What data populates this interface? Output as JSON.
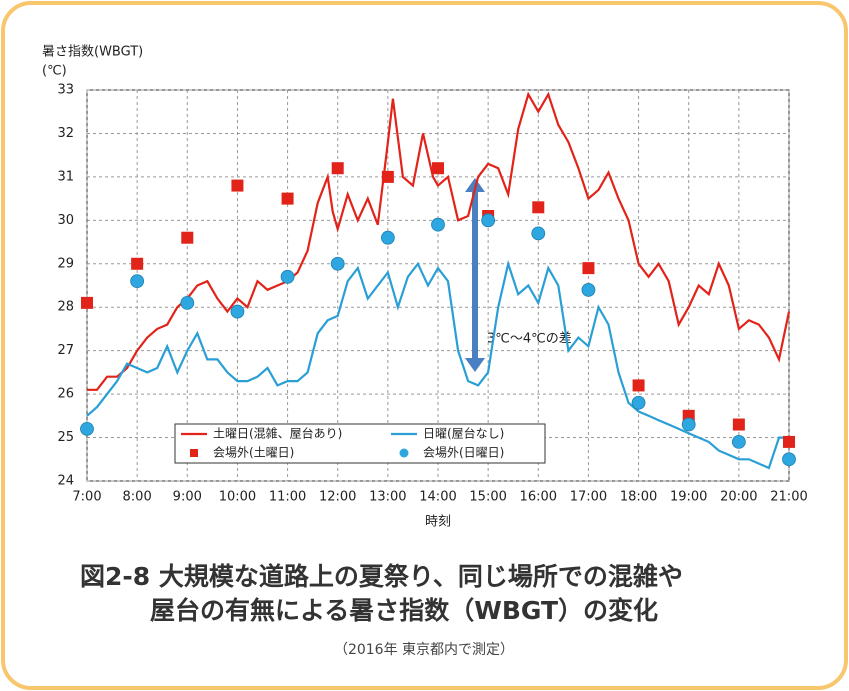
{
  "chart_data": {
    "type": "line",
    "title": [
      "図2-8 大規模な道路上の夏祭り、同じ場所での混雑や",
      "屋台の有無による暑さ指数（WBGT）の変化"
    ],
    "subtitle": "（2016年 東京都内で測定）",
    "y_label": [
      "暑さ指数(WBGT)",
      "(℃)"
    ],
    "x_label": "時刻",
    "annotation": "3℃～4℃の差",
    "xlim": [
      7,
      21
    ],
    "xticks": [
      {
        "value": 7,
        "label": "7:00"
      },
      {
        "value": 8,
        "label": "8:00"
      },
      {
        "value": 9,
        "label": "9:00"
      },
      {
        "value": 10,
        "label": "10:00"
      },
      {
        "value": 11,
        "label": "11:00"
      },
      {
        "value": 12,
        "label": "12:00"
      },
      {
        "value": 13,
        "label": "13:00"
      },
      {
        "value": 14,
        "label": "14:00"
      },
      {
        "value": 15,
        "label": "15:00"
      },
      {
        "value": 16,
        "label": "16:00"
      },
      {
        "value": 17,
        "label": "17:00"
      },
      {
        "value": 18,
        "label": "18:00"
      },
      {
        "value": 19,
        "label": "19:00"
      },
      {
        "value": 20,
        "label": "20:00"
      },
      {
        "value": 21,
        "label": "21:00"
      }
    ],
    "ylim": [
      24,
      33
    ],
    "yticks": [
      24,
      25,
      26,
      27,
      28,
      29,
      30,
      31,
      32,
      33
    ],
    "grid": true,
    "series": [
      {
        "name": "土曜日(混雑、屋台あり)",
        "color": "#e2231a",
        "style": "line",
        "x": [
          7.0,
          7.2,
          7.4,
          7.6,
          7.8,
          8.0,
          8.2,
          8.4,
          8.6,
          8.8,
          9.0,
          9.2,
          9.4,
          9.6,
          9.8,
          10.0,
          10.2,
          10.4,
          10.6,
          10.8,
          11.0,
          11.2,
          11.4,
          11.6,
          11.8,
          11.9,
          12.0,
          12.2,
          12.4,
          12.6,
          12.8,
          13.0,
          13.1,
          13.3,
          13.5,
          13.7,
          13.9,
          14.0,
          14.2,
          14.4,
          14.6,
          14.8,
          15.0,
          15.2,
          15.4,
          15.6,
          15.8,
          16.0,
          16.2,
          16.4,
          16.6,
          16.8,
          17.0,
          17.2,
          17.4,
          17.6,
          17.8,
          18.0,
          18.2,
          18.4,
          18.6,
          18.8,
          19.0,
          19.2,
          19.4,
          19.6,
          19.8,
          20.0,
          20.2,
          20.4,
          20.6,
          20.8,
          21.0
        ],
        "values": [
          26.1,
          26.1,
          26.4,
          26.4,
          26.6,
          27.0,
          27.3,
          27.5,
          27.6,
          28.0,
          28.2,
          28.5,
          28.6,
          28.2,
          27.9,
          28.2,
          28.0,
          28.6,
          28.4,
          28.5,
          28.6,
          28.8,
          29.3,
          30.4,
          31.0,
          30.2,
          29.8,
          30.6,
          30.0,
          30.5,
          29.9,
          31.8,
          32.8,
          31.0,
          30.8,
          32.0,
          31.0,
          30.8,
          31.0,
          30.0,
          30.1,
          31.0,
          31.3,
          31.2,
          30.6,
          32.1,
          32.9,
          32.5,
          32.9,
          32.2,
          31.8,
          31.2,
          30.5,
          30.7,
          31.1,
          30.5,
          30.0,
          29.0,
          28.7,
          29.0,
          28.6,
          27.6,
          28.0,
          28.5,
          28.3,
          29.0,
          28.5,
          27.5,
          27.7,
          27.6,
          27.3,
          26.8,
          27.9
        ]
      },
      {
        "name": "日曜(屋台なし)",
        "color": "#2a9fd6",
        "style": "line",
        "x": [
          7.0,
          7.2,
          7.4,
          7.6,
          7.8,
          8.0,
          8.2,
          8.4,
          8.6,
          8.8,
          9.0,
          9.2,
          9.4,
          9.6,
          9.8,
          10.0,
          10.2,
          10.4,
          10.6,
          10.8,
          11.0,
          11.2,
          11.4,
          11.6,
          11.8,
          12.0,
          12.2,
          12.4,
          12.6,
          12.8,
          13.0,
          13.2,
          13.4,
          13.6,
          13.8,
          14.0,
          14.2,
          14.4,
          14.6,
          14.8,
          15.0,
          15.2,
          15.4,
          15.6,
          15.8,
          16.0,
          16.2,
          16.4,
          16.6,
          16.8,
          17.0,
          17.2,
          17.4,
          17.6,
          17.8,
          18.0,
          18.2,
          18.4,
          18.6,
          18.8,
          19.0,
          19.2,
          19.4,
          19.6,
          19.8,
          20.0,
          20.2,
          20.4,
          20.6,
          20.8,
          21.0
        ],
        "values": [
          25.5,
          25.7,
          26.0,
          26.3,
          26.7,
          26.6,
          26.5,
          26.6,
          27.1,
          26.5,
          27.0,
          27.4,
          26.8,
          26.8,
          26.5,
          26.3,
          26.3,
          26.4,
          26.6,
          26.2,
          26.3,
          26.3,
          26.5,
          27.4,
          27.7,
          27.8,
          28.6,
          28.9,
          28.2,
          28.5,
          28.8,
          28.0,
          28.7,
          29.0,
          28.5,
          28.9,
          28.6,
          27.0,
          26.3,
          26.2,
          26.5,
          28.0,
          29.0,
          28.3,
          28.5,
          28.1,
          28.9,
          28.5,
          27.0,
          27.3,
          27.1,
          28.0,
          27.6,
          26.5,
          25.8,
          25.6,
          25.5,
          25.4,
          25.3,
          25.2,
          25.1,
          25.0,
          24.9,
          24.7,
          24.6,
          24.5,
          24.5,
          24.4,
          24.3,
          25.0,
          25.0
        ]
      },
      {
        "name": "会場外(土曜日)",
        "color": "#e2231a",
        "style": "square",
        "x": [
          7,
          8,
          9,
          10,
          11,
          12,
          13,
          14,
          15,
          16,
          17,
          18,
          19,
          20,
          21
        ],
        "values": [
          28.1,
          29.0,
          29.6,
          30.8,
          30.5,
          31.2,
          31.0,
          31.2,
          30.1,
          30.3,
          28.9,
          26.2,
          25.5,
          25.3,
          24.9
        ]
      },
      {
        "name": "会場外(日曜日)",
        "color": "#2ea7e0",
        "style": "circle",
        "x": [
          7,
          8,
          9,
          10,
          11,
          12,
          13,
          14,
          15,
          16,
          17,
          18,
          19,
          20,
          21
        ],
        "values": [
          25.2,
          28.6,
          28.1,
          27.9,
          28.7,
          29.0,
          29.6,
          29.9,
          30.0,
          29.7,
          28.4,
          25.8,
          25.3,
          24.9,
          24.5
        ]
      }
    ]
  }
}
